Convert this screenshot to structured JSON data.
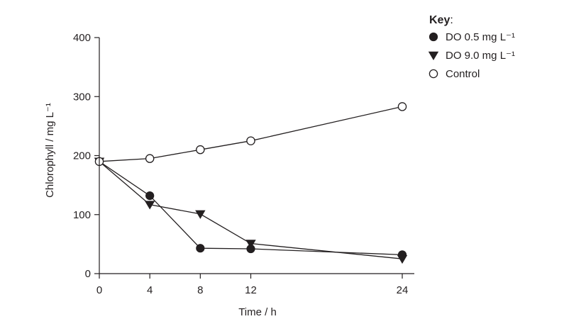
{
  "chart_data": {
    "type": "line",
    "xlabel": "Time / h",
    "ylabel": "Chlorophyll / mg L⁻¹",
    "x_ticks": [
      0,
      4,
      8,
      12,
      24
    ],
    "y_ticks": [
      0,
      100,
      200,
      300,
      400
    ],
    "xlim": [
      0,
      24
    ],
    "ylim": [
      0,
      400
    ],
    "grid": false,
    "legend": {
      "title": "Key",
      "title_suffix": ":",
      "placement": "top-right"
    },
    "series": [
      {
        "name": "DO 0.5 mg L⁻¹",
        "marker": "filled-circle",
        "color": "#231f20",
        "x": [
          0,
          4,
          8,
          12,
          24
        ],
        "y": [
          190,
          132,
          43,
          42,
          32
        ]
      },
      {
        "name": "DO 9.0 mg L⁻¹",
        "marker": "filled-triangle-down",
        "color": "#231f20",
        "x": [
          0,
          4,
          8,
          12,
          24
        ],
        "y": [
          190,
          117,
          101,
          51,
          25
        ]
      },
      {
        "name": "Control",
        "marker": "open-circle",
        "color": "#231f20",
        "x": [
          0,
          4,
          8,
          12,
          24
        ],
        "y": [
          190,
          195,
          210,
          225,
          283
        ]
      }
    ]
  }
}
